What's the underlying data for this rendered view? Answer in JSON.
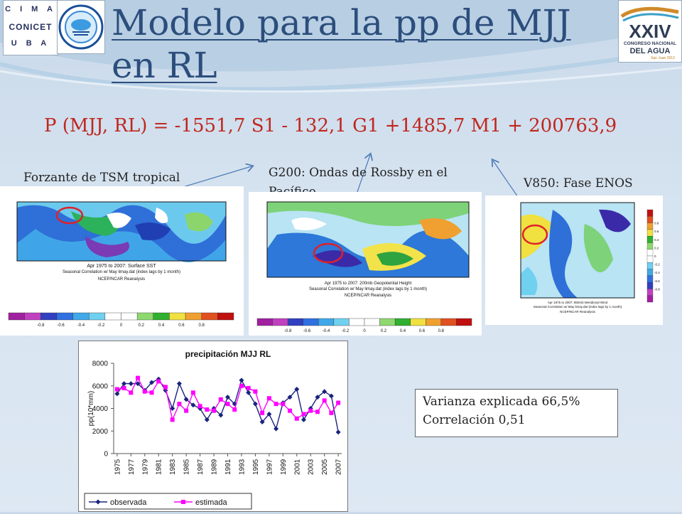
{
  "header": {
    "title": "Modelo para la pp de MJJ en RL",
    "logo_cima_lines": [
      "C I M A",
      "CONICET",
      "U B A"
    ],
    "logo_congress": {
      "numeral": "XXIV",
      "line1": "CONGRESO NACIONAL",
      "line2": "DEL AGUA",
      "line3": "San Juan 2013"
    }
  },
  "equation": "P (MJJ, RL) = -1551,7 S1 - 132,1 G1 +1485,7  M1 + 200763,9",
  "labels": {
    "tsm": "Forzante de TSM tropical",
    "g200": "G200: Ondas de Rossby en el Pacífico",
    "v850": "V850: Fase ENOS"
  },
  "maps": {
    "tsm": {
      "caption1": "Apr 1975 to 2007: Surface SST",
      "caption2": "Seasonal Correlation w/ May limay.dat (index lags by 1 month)",
      "caption3": "NCEP/NCAR Reanalysis"
    },
    "g200": {
      "caption1": "Apr 1975 to 2007: 200mb Geopotential Height",
      "caption2": "Seasonal Correlation w/ May limay.dat (index lags by 1 month)",
      "caption3": "NCEP/NCAR Reanalysis"
    },
    "v850": {
      "caption1": "Apr 1975 to 2007: 850mb Meridional Wind",
      "caption2": "Seasonal Correlation w/ May limay.dat (index lags by 1 month)",
      "caption3": "NCEP/NCAR Reanalysis"
    },
    "colorbar_ticks": [
      "-0.8",
      "-0.6",
      "-0.4",
      "-0.2",
      "0",
      "0.2",
      "0.4",
      "0.6",
      "0.8"
    ],
    "colorbar_colors": [
      "#a020a0",
      "#c040c0",
      "#3040c0",
      "#3070e0",
      "#40a8e8",
      "#70d0f0",
      "#ffffff",
      "#ffffff",
      "#8ed870",
      "#30b030",
      "#f0e040",
      "#f0a030",
      "#e05020",
      "#c01010"
    ]
  },
  "stats": {
    "line1": "Varianza explicada 66,5%",
    "line2": "Correlación 0,51"
  },
  "chart_data": {
    "type": "line",
    "title": "precipitación MJJ RL",
    "xlabel": "",
    "ylabel": "pp(10*mm)",
    "ylim": [
      0,
      8000
    ],
    "yticks": [
      "0",
      "2000",
      "4000",
      "6000",
      "8000"
    ],
    "x": [
      1975,
      1976,
      1977,
      1978,
      1979,
      1980,
      1981,
      1982,
      1983,
      1984,
      1985,
      1986,
      1987,
      1988,
      1989,
      1990,
      1991,
      1992,
      1993,
      1994,
      1995,
      1996,
      1997,
      1998,
      1999,
      2000,
      2001,
      2002,
      2003,
      2004,
      2005,
      2006,
      2007
    ],
    "xticks": [
      "1975",
      "1977",
      "1979",
      "1981",
      "1983",
      "1985",
      "1987",
      "1989",
      "1991",
      "1993",
      "1995",
      "1997",
      "1999",
      "2001",
      "2003",
      "2005",
      "2007"
    ],
    "series": [
      {
        "name": "observada",
        "color": "#1a237e",
        "marker": "diamond",
        "values": [
          5300,
          6200,
          6200,
          6200,
          5600,
          6300,
          6600,
          5600,
          4000,
          6200,
          4800,
          4300,
          4000,
          3000,
          4000,
          3400,
          5000,
          4400,
          6500,
          5400,
          4400,
          2800,
          3500,
          2200,
          4500,
          5000,
          5700,
          3000,
          4000,
          5000,
          5500,
          5100,
          1900
        ]
      },
      {
        "name": "estimada",
        "color": "#ff00ff",
        "marker": "square",
        "values": [
          5700,
          5800,
          5400,
          6700,
          5500,
          5400,
          6400,
          5900,
          3000,
          4400,
          3800,
          5400,
          4200,
          3900,
          3800,
          4800,
          4400,
          3900,
          6000,
          5800,
          5500,
          3600,
          4900,
          4400,
          4400,
          3800,
          3100,
          3500,
          3800,
          3700,
          4700,
          3600,
          4500
        ]
      }
    ],
    "legend_position": "bottom"
  }
}
